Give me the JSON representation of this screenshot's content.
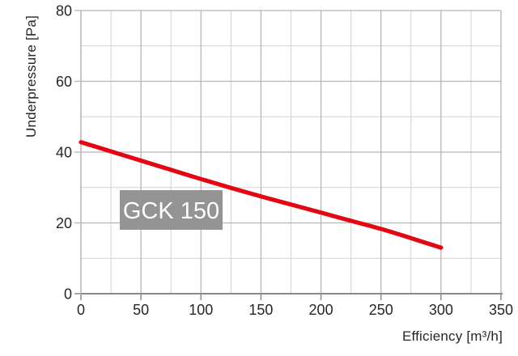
{
  "chart_data": {
    "type": "line",
    "title": "",
    "xlabel": "Efficiency [m³/h]",
    "ylabel": "Underpressure [Pa]",
    "xlim": [
      0,
      350
    ],
    "ylim": [
      0,
      80
    ],
    "x_major_ticks": [
      0,
      50,
      100,
      150,
      200,
      250,
      300,
      350
    ],
    "y_major_ticks": [
      0,
      20,
      40,
      60,
      80
    ],
    "x_minor_step": 25,
    "y_minor_step": 10,
    "grid": true,
    "legend_position": "label-box-on-chart",
    "series": [
      {
        "name": "GCK 150",
        "color": "#e30613",
        "x": [
          0,
          25,
          50,
          75,
          100,
          125,
          150,
          175,
          200,
          225,
          250,
          275,
          300
        ],
        "y": [
          42.8,
          40.2,
          37.6,
          35.0,
          32.4,
          29.9,
          27.5,
          25.2,
          22.9,
          20.6,
          18.3,
          15.7,
          13.0
        ]
      }
    ],
    "annotations": [
      {
        "text": "GCK 150",
        "style": "gray-box-white-text"
      }
    ]
  },
  "labels": {
    "series_box": "GCK 150",
    "x_axis_title": "Efficiency [m³/h]",
    "y_axis_title": "Underpressure [Pa]"
  },
  "colors": {
    "curve": "#e30613",
    "grid_major": "#b5b5b5",
    "grid_minor": "#d2d2d2",
    "axis": "#8a8a8a",
    "tick_text": "#262626",
    "series_box_bg": "#949494",
    "series_box_text": "#ffffff",
    "background": "#ffffff"
  }
}
